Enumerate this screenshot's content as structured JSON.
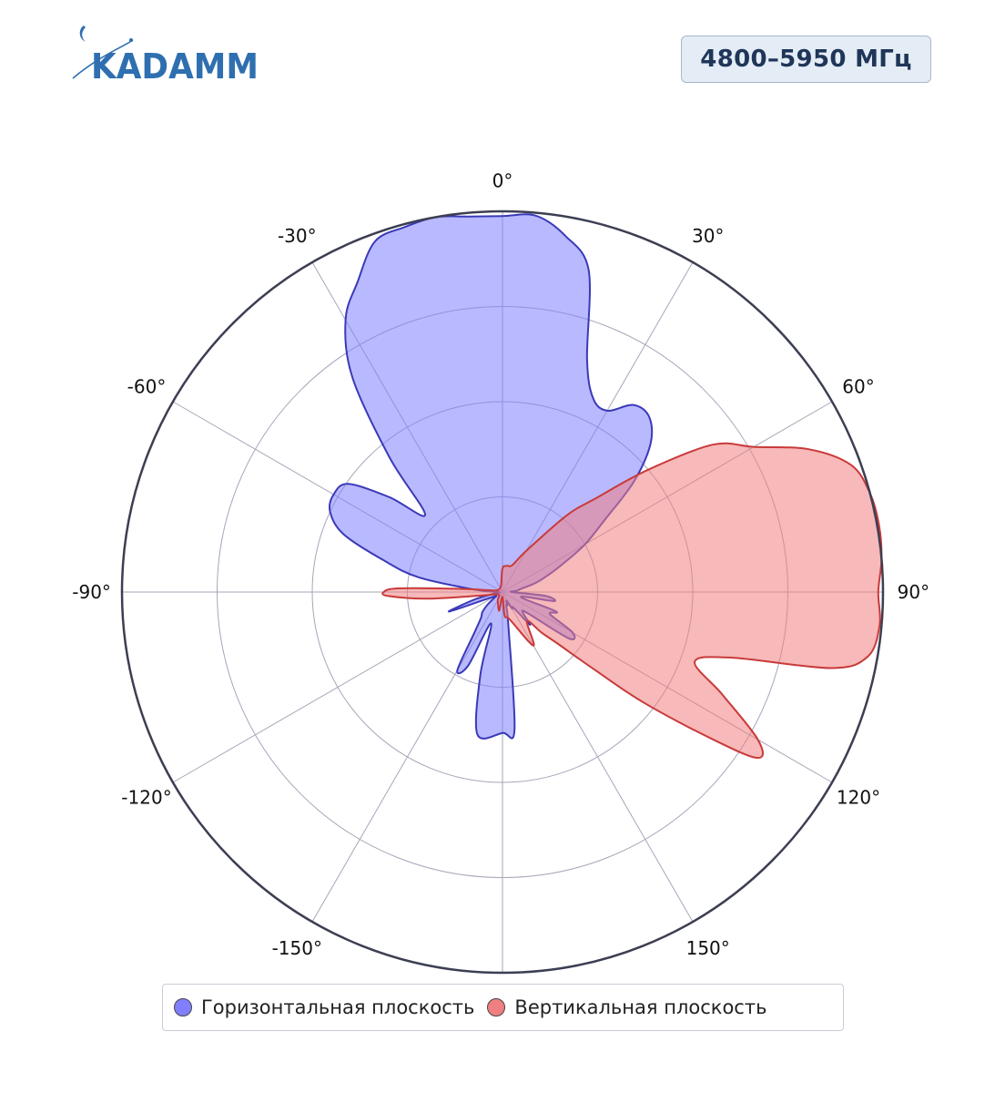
{
  "header": {
    "logo_text": "KADAMM",
    "frequency_badge": "4800–5950 МГц"
  },
  "colors": {
    "horizontal_fill": "#8080ff",
    "horizontal_stroke": "#3a3ab8",
    "vertical_fill": "#f08080",
    "vertical_stroke": "#c93a3a",
    "grid": "#a6a6ba",
    "outer_ring": "#3c3f52",
    "logo": "#2f6fb0"
  },
  "legend": {
    "items": [
      {
        "label": "Горизонтальная плоскость",
        "color": "#8080ff"
      },
      {
        "label": "Вертикальная плоскость",
        "color": "#f08080"
      }
    ]
  },
  "chart_data": {
    "type": "polar-area",
    "angular_direction": "clockwise",
    "zero_at": "top",
    "angle_tick_labels": [
      "0°",
      "30°",
      "60°",
      "90°",
      "120°",
      "150°",
      "-150°",
      "-120°",
      "-90°",
      "-60°",
      "-30°"
    ],
    "angle_ticks": [
      0,
      30,
      60,
      90,
      120,
      150,
      -150,
      -120,
      -90,
      -60,
      -30
    ],
    "radial_range": [
      0,
      4
    ],
    "radial_gridlines": [
      1,
      2,
      3,
      4
    ],
    "grid": true,
    "legend_position": "bottom",
    "series": [
      {
        "name": "Горизонтальная плоскость",
        "theta": [
          -180,
          -170,
          -165,
          -160,
          -155,
          -150,
          -145,
          -140,
          -135,
          -130,
          -125,
          -120,
          -115,
          -110,
          -105,
          -100,
          -95,
          -90,
          -85,
          -80,
          -75,
          -70,
          -65,
          -60,
          -55,
          -50,
          -45,
          -40,
          -35,
          -30,
          -25,
          -20,
          -15,
          -10,
          -5,
          0,
          5,
          10,
          15,
          20,
          25,
          30,
          35,
          40,
          45,
          50,
          55,
          60,
          65,
          70,
          75,
          80,
          85,
          90,
          95,
          100,
          105,
          110,
          115,
          120,
          125,
          130,
          135,
          140,
          145,
          150,
          155,
          160,
          165,
          170,
          175
        ],
        "r": [
          1.48,
          1.52,
          0.9,
          0.35,
          0.85,
          0.95,
          0.5,
          0.35,
          0.3,
          0.2,
          0.1,
          0.08,
          0.15,
          0.6,
          0.3,
          0.08,
          0.05,
          0.05,
          0.3,
          0.9,
          1.3,
          1.78,
          2.0,
          2.05,
          1.98,
          1.55,
          1.15,
          1.85,
          2.75,
          3.3,
          3.6,
          3.92,
          3.97,
          4.0,
          3.96,
          3.95,
          3.97,
          3.8,
          3.5,
          2.6,
          2.25,
          2.2,
          2.4,
          2.4,
          2.2,
          1.8,
          1.3,
          1.0,
          0.7,
          0.5,
          0.35,
          0.2,
          0.15,
          0.1,
          0.45,
          0.55,
          0.2,
          0.6,
          0.55,
          0.85,
          0.85,
          0.35,
          0.3,
          0.45,
          0.2,
          0.2,
          0.1,
          0.15,
          0.15,
          0.35,
          1.45
        ]
      },
      {
        "name": "Вертикальная плоскость",
        "theta": [
          -180,
          -170,
          -150,
          -120,
          -100,
          -95,
          -92,
          -90,
          -88,
          -86,
          -80,
          -60,
          -30,
          -10,
          0,
          10,
          20,
          30,
          40,
          45,
          50,
          55,
          60,
          65,
          70,
          75,
          80,
          85,
          90,
          95,
          100,
          103,
          106,
          110,
          115,
          120,
          123,
          125,
          128,
          130,
          133,
          136,
          140,
          150,
          165,
          175
        ],
        "r": [
          0.05,
          0.2,
          0.1,
          0.05,
          0.2,
          0.8,
          1.2,
          1.25,
          1.1,
          0.5,
          0.1,
          0.05,
          0.05,
          0.08,
          0.25,
          0.28,
          0.3,
          0.5,
          1.05,
          1.4,
          2.0,
          2.7,
          3.05,
          3.55,
          3.9,
          4.0,
          4.02,
          4.0,
          3.95,
          3.98,
          3.9,
          3.55,
          2.5,
          2.15,
          2.55,
          3.1,
          3.2,
          2.7,
          1.9,
          1.3,
          0.8,
          0.6,
          0.4,
          0.65,
          0.3,
          0.25
        ]
      }
    ]
  }
}
